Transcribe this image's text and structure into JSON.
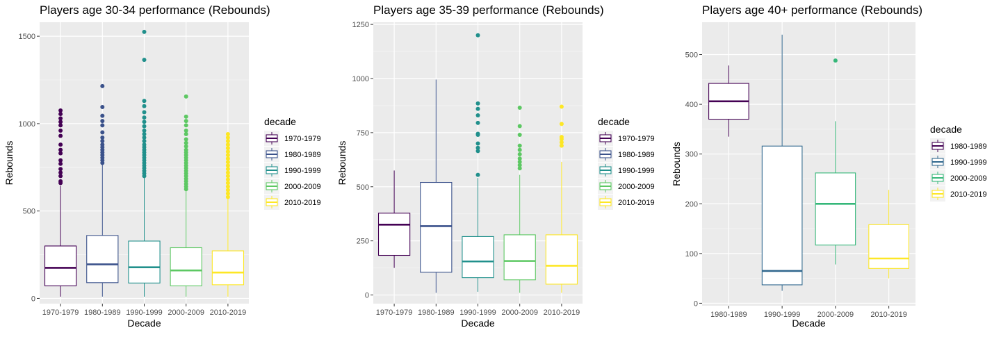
{
  "chart_data": [
    {
      "type": "boxplot",
      "title": "Players age 30-34 performance (Rebounds)",
      "xlabel": "Decade",
      "ylabel": "Rebounds",
      "ylim": [
        -30,
        1580
      ],
      "yticks": [
        0,
        500,
        1000,
        1500
      ],
      "grid": true,
      "legend_title": "decade",
      "legend_position": "right",
      "categories": [
        "1970-1979",
        "1980-1989",
        "1990-1999",
        "2000-2009",
        "2010-2019"
      ],
      "boxes": [
        {
          "category": "1970-1979",
          "color": "#440154",
          "min": 10,
          "q1": 72,
          "median": 175,
          "q3": 300,
          "max": 645,
          "outliers": [
            660,
            670,
            700,
            720,
            740,
            770,
            790,
            830,
            850,
            880,
            930,
            960,
            990,
            1010,
            1030,
            1055,
            1075
          ]
        },
        {
          "category": "1980-1989",
          "color": "#3B528B",
          "min": 10,
          "q1": 90,
          "median": 195,
          "q3": 360,
          "max": 765,
          "outliers": [
            775,
            790,
            805,
            820,
            835,
            850,
            865,
            880,
            900,
            920,
            950,
            990,
            1015,
            1045,
            1095,
            1215
          ]
        },
        {
          "category": "1990-1999",
          "color": "#21908C",
          "min": 10,
          "q1": 88,
          "median": 178,
          "q3": 328,
          "max": 690,
          "outliers": [
            700,
            715,
            730,
            745,
            760,
            775,
            790,
            805,
            820,
            835,
            850,
            865,
            880,
            900,
            920,
            940,
            960,
            985,
            1010,
            1035,
            1065,
            1100,
            1130,
            1365,
            1525
          ]
        },
        {
          "category": "2000-2009",
          "color": "#5DC863",
          "min": 10,
          "q1": 72,
          "median": 160,
          "q3": 290,
          "max": 615,
          "outliers": [
            625,
            640,
            655,
            670,
            685,
            700,
            715,
            730,
            745,
            760,
            775,
            790,
            805,
            820,
            835,
            850,
            870,
            890,
            910,
            940,
            960,
            990,
            1015,
            1040,
            1155
          ]
        },
        {
          "category": "2010-2019",
          "color": "#FDE725",
          "min": 10,
          "q1": 78,
          "median": 148,
          "q3": 272,
          "max": 570,
          "outliers": [
            580,
            600,
            620,
            640,
            660,
            680,
            700,
            720,
            740,
            760,
            780,
            800,
            820,
            840,
            860,
            880,
            900,
            920,
            940
          ]
        }
      ]
    },
    {
      "type": "boxplot",
      "title": "Players age 35-39 performance (Rebounds)",
      "xlabel": "Decade",
      "ylabel": "Rebounds",
      "ylim": [
        -40,
        1260
      ],
      "yticks": [
        0,
        250,
        500,
        750,
        1000,
        1250
      ],
      "grid": true,
      "legend_title": "decade",
      "legend_position": "right",
      "categories": [
        "1970-1979",
        "1980-1989",
        "1990-1999",
        "2000-2009",
        "2010-2019"
      ],
      "boxes": [
        {
          "category": "1970-1979",
          "color": "#440154",
          "min": 125,
          "q1": 183,
          "median": 325,
          "q3": 378,
          "max": 575,
          "outliers": []
        },
        {
          "category": "1980-1989",
          "color": "#3B528B",
          "min": 10,
          "q1": 105,
          "median": 318,
          "q3": 520,
          "max": 995,
          "outliers": []
        },
        {
          "category": "1990-1999",
          "color": "#21908C",
          "min": 15,
          "q1": 80,
          "median": 155,
          "q3": 270,
          "max": 540,
          "outliers": [
            555,
            665,
            680,
            700,
            740,
            745,
            795,
            830,
            860,
            885,
            1200
          ]
        },
        {
          "category": "2000-2009",
          "color": "#5DC863",
          "min": 10,
          "q1": 70,
          "median": 157,
          "q3": 278,
          "max": 555,
          "outliers": [
            585,
            600,
            615,
            630,
            650,
            670,
            690,
            740,
            780,
            865
          ]
        },
        {
          "category": "2010-2019",
          "color": "#FDE725",
          "min": 10,
          "q1": 50,
          "median": 135,
          "q3": 278,
          "max": 615,
          "outliers": [
            690,
            705,
            720,
            730,
            790,
            870
          ]
        }
      ]
    },
    {
      "type": "boxplot",
      "title": "Players age 40+ performance (Rebounds)",
      "xlabel": "Decade",
      "ylabel": "Rebounds",
      "ylim": [
        -5,
        565
      ],
      "yticks": [
        0,
        100,
        200,
        300,
        400,
        500
      ],
      "grid": true,
      "legend_title": "decade",
      "legend_position": "right",
      "categories": [
        "1980-1989",
        "1990-1999",
        "2000-2009",
        "2010-2019"
      ],
      "boxes": [
        {
          "category": "1980-1989",
          "color": "#440154",
          "min": 335,
          "q1": 370,
          "median": 406,
          "q3": 442,
          "max": 478,
          "outliers": []
        },
        {
          "category": "1990-1999",
          "color": "#31688E",
          "min": 25,
          "q1": 37,
          "median": 65,
          "q3": 316,
          "max": 540,
          "outliers": []
        },
        {
          "category": "2000-2009",
          "color": "#35B779",
          "min": 78,
          "q1": 117,
          "median": 200,
          "q3": 262,
          "max": 366,
          "outliers": [
            488
          ]
        },
        {
          "category": "2010-2019",
          "color": "#FDE725",
          "min": 50,
          "q1": 70,
          "median": 90,
          "q3": 158,
          "max": 228,
          "outliers": []
        }
      ]
    }
  ]
}
